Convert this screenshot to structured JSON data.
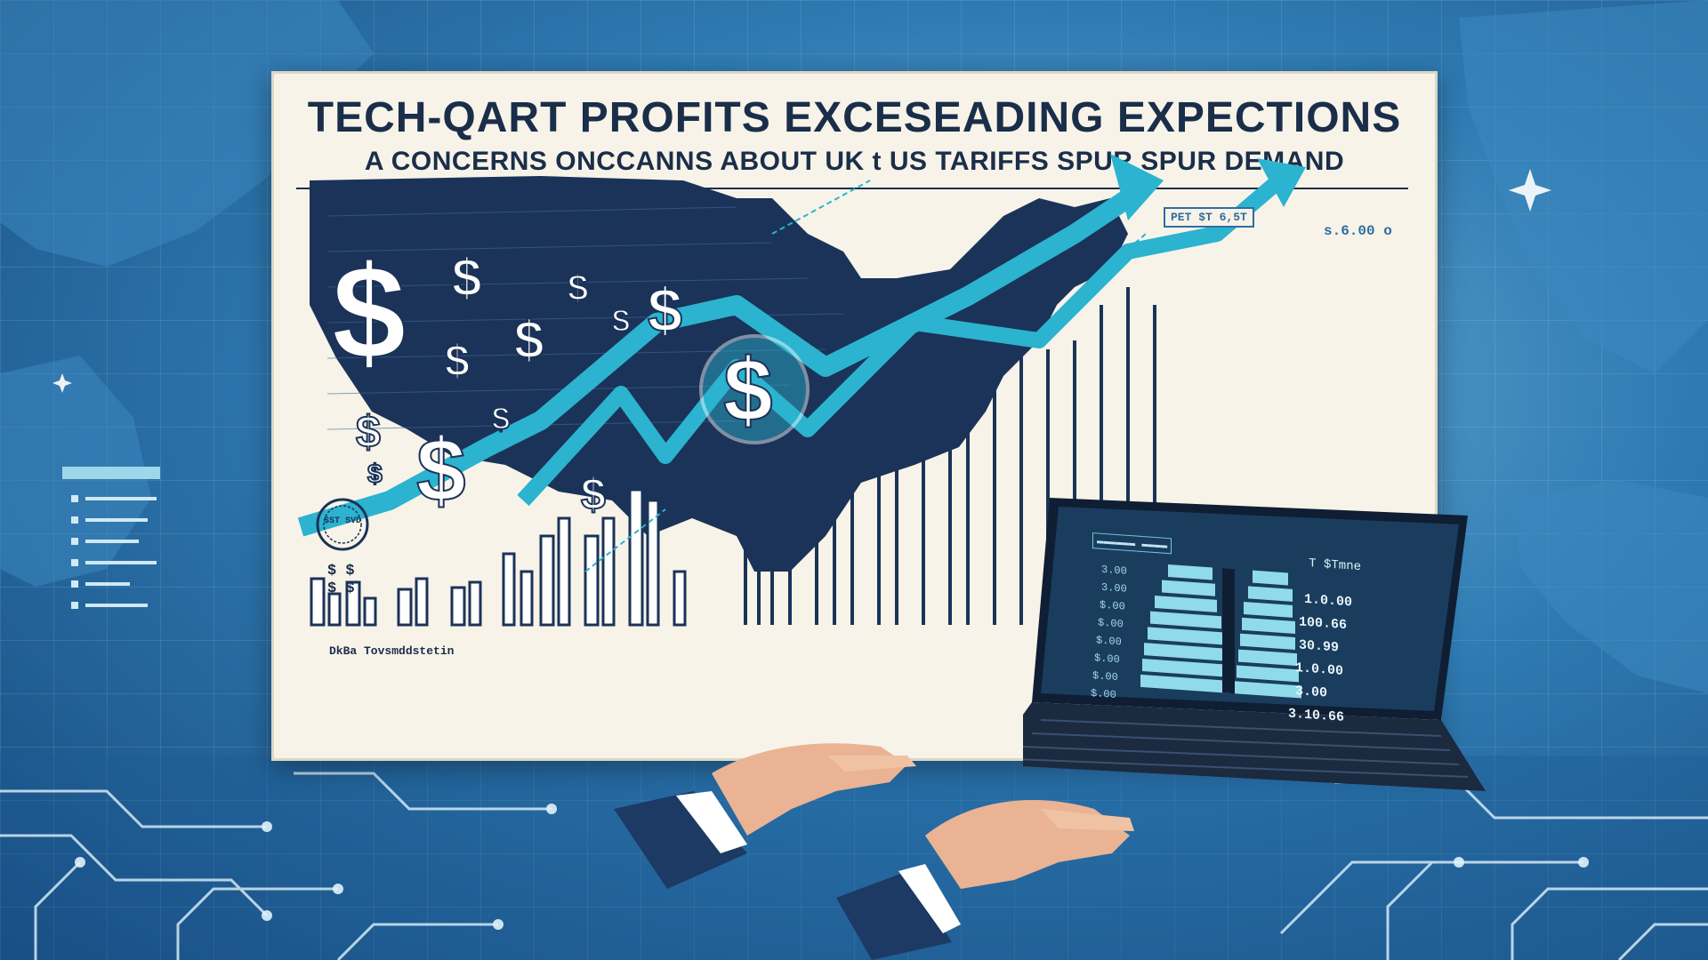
{
  "headline": "TECH-QART PROFITS EXCESEADING EXPECTIONS",
  "subheadline": "A CONCERNS ONCCANNS ABOUT UK t US TARIFFS SPUR SPUR DEMAND",
  "chart_label_box": "PET $T 6,5T",
  "chart_price_tag": "s.6.00 o",
  "footnote": "DkBa Tovsmddstetin",
  "stamp_text": "$ST SVD",
  "small_dollar_marks": [
    "$ $",
    "$ $"
  ],
  "laptop": {
    "tab_label": "▬▬▬▬▬▬ ▬▬▬▬",
    "caption": "T $Tmne",
    "right_values": [
      "1.0.00",
      "100.66",
      "30.99",
      "1.0.00",
      "3.00",
      "3.10.66"
    ],
    "left_values": [
      "3.00",
      "3.00",
      "$.00",
      "$.00",
      "$.00",
      "$.00",
      "$.00",
      "$.00"
    ]
  },
  "colors": {
    "accent": "#2bb3cf",
    "navy": "#1a2e4a",
    "board": "#f7f3e8",
    "background": "#2f7bb3"
  }
}
